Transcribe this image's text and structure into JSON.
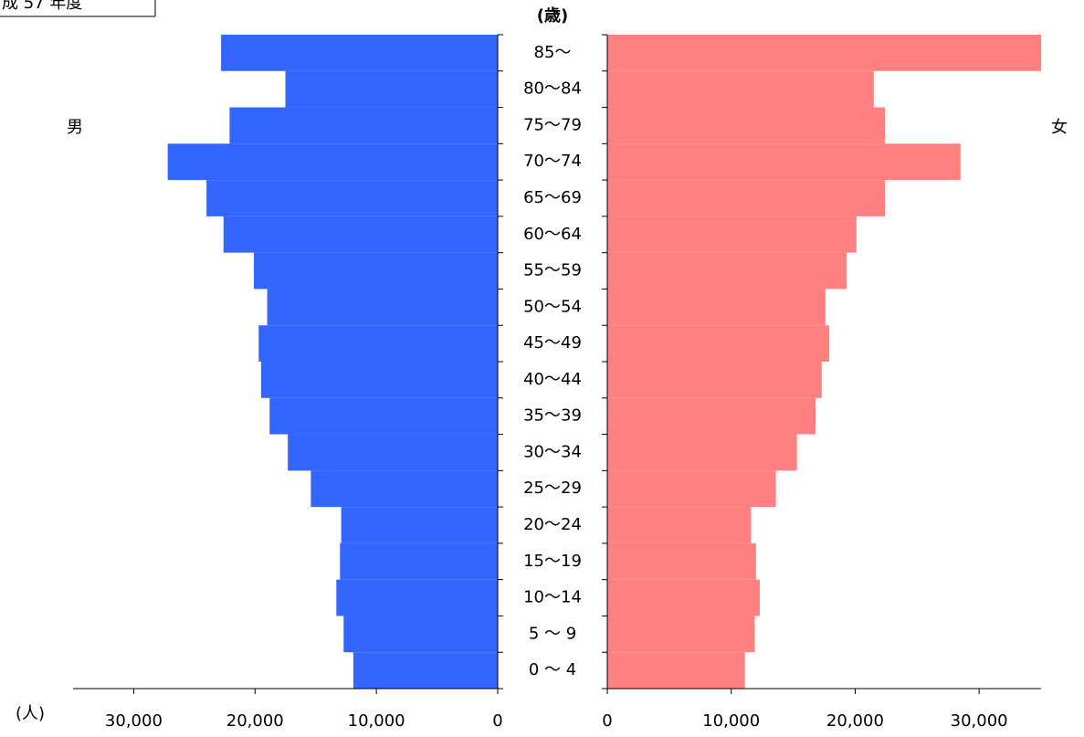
{
  "chart_data": {
    "type": "pyramid",
    "title": "成 57 年度",
    "y_unit": "(歳)",
    "x_unit": "(人)",
    "categories": [
      "85〜",
      "80〜84",
      "75〜79",
      "70〜74",
      "65〜69",
      "60〜64",
      "55〜59",
      "50〜54",
      "45〜49",
      "40〜44",
      "35〜39",
      "30〜34",
      "25〜29",
      "20〜24",
      "15〜19",
      "10〜14",
      "5 〜 9",
      "0 〜 4"
    ],
    "series": [
      {
        "name": "男",
        "color": "#3366ff",
        "values": [
          22800,
          17500,
          22100,
          27200,
          24000,
          22600,
          20100,
          19000,
          19700,
          19500,
          18800,
          17300,
          15400,
          12900,
          13000,
          13300,
          12700,
          11900
        ]
      },
      {
        "name": "女",
        "color": "#ff8080",
        "values": [
          35000,
          21500,
          22400,
          28500,
          22400,
          20100,
          19300,
          17600,
          17900,
          17300,
          16800,
          15300,
          13600,
          11600,
          12000,
          12300,
          11900,
          11100
        ]
      }
    ],
    "xlim": [
      0,
      35000
    ],
    "xticks": [
      0,
      {
        "value": 10000,
        "label": "10,000"
      },
      {
        "value": 20000,
        "label": "20,000"
      },
      {
        "value": 30000,
        "label": "30,000"
      }
    ]
  }
}
